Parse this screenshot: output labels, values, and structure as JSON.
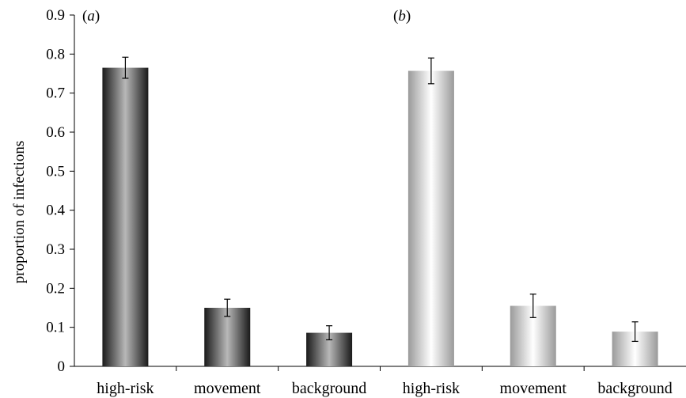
{
  "chart_data": {
    "type": "bar",
    "ylabel": "proportion of infections",
    "ylim": [
      0,
      0.9
    ],
    "yticks": [
      "0",
      "0.1",
      "0.2",
      "0.3",
      "0.4",
      "0.5",
      "0.6",
      "0.7",
      "0.8",
      "0.9"
    ],
    "grid": false,
    "panels": [
      {
        "label": "(a)",
        "style": "dark",
        "categories": [
          "high-risk",
          "movement",
          "background"
        ],
        "values": [
          0.765,
          0.15,
          0.086
        ],
        "error": [
          0.027,
          0.022,
          0.018
        ]
      },
      {
        "label": "(b)",
        "style": "light",
        "categories": [
          "high-risk",
          "movement",
          "background"
        ],
        "values": [
          0.757,
          0.155,
          0.089
        ],
        "error": [
          0.033,
          0.03,
          0.025
        ]
      }
    ],
    "colors": {
      "dark_edge": "#1a1a1a",
      "dark_mid": "#b8b8b8",
      "light_edge": "#9a9a9a",
      "light_mid": "#ffffff",
      "axis": "#000000"
    }
  }
}
